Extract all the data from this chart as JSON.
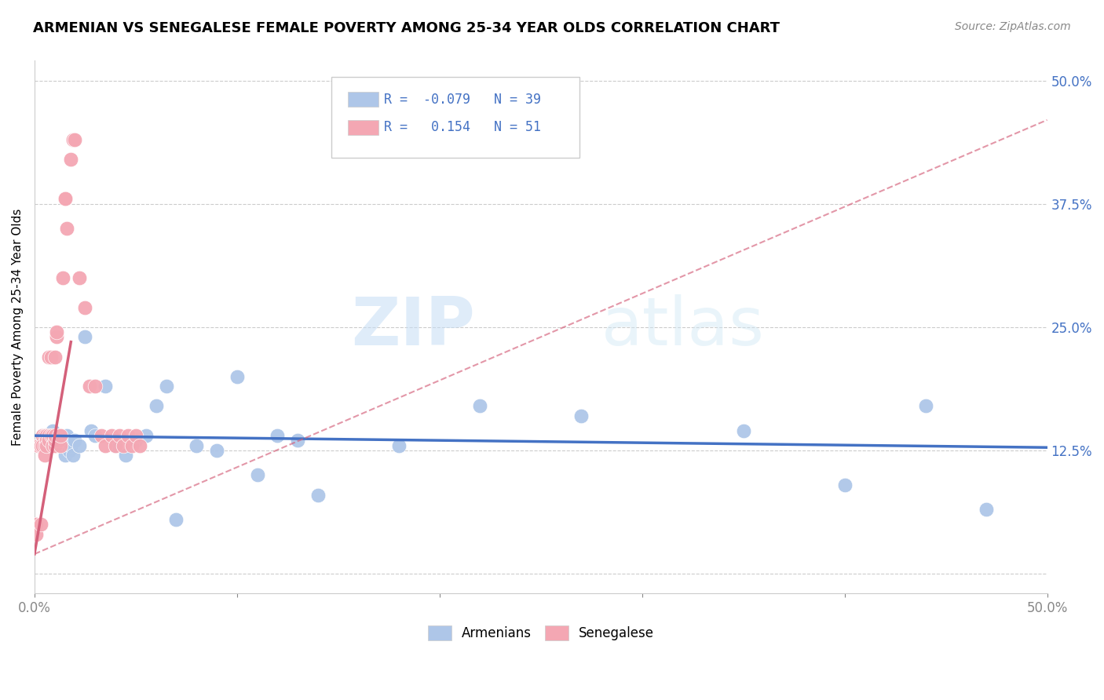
{
  "title": "ARMENIAN VS SENEGALESE FEMALE POVERTY AMONG 25-34 YEAR OLDS CORRELATION CHART",
  "source": "Source: ZipAtlas.com",
  "ylabel": "Female Poverty Among 25-34 Year Olds",
  "xlim": [
    0.0,
    0.5
  ],
  "ylim": [
    -0.02,
    0.52
  ],
  "xticks": [
    0.0,
    0.1,
    0.2,
    0.3,
    0.4,
    0.5
  ],
  "xticklabels": [
    "0.0%",
    "",
    "",
    "",
    "",
    "50.0%"
  ],
  "ytick_positions": [
    0.0,
    0.125,
    0.25,
    0.375,
    0.5
  ],
  "ytick_labels": [
    "",
    "12.5%",
    "25.0%",
    "37.5%",
    "50.0%"
  ],
  "armenians_R": -0.079,
  "armenians_N": 39,
  "senegalese_R": 0.154,
  "senegalese_N": 51,
  "armenian_color": "#aec6e8",
  "senegalese_color": "#f4a7b3",
  "armenian_line_color": "#4472c4",
  "senegalese_line_color": "#d4607a",
  "armenians_x": [
    0.004,
    0.007,
    0.009,
    0.011,
    0.012,
    0.013,
    0.013,
    0.015,
    0.016,
    0.017,
    0.018,
    0.019,
    0.02,
    0.022,
    0.025,
    0.028,
    0.03,
    0.035,
    0.04,
    0.045,
    0.05,
    0.055,
    0.06,
    0.065,
    0.07,
    0.08,
    0.09,
    0.1,
    0.11,
    0.12,
    0.13,
    0.14,
    0.18,
    0.22,
    0.27,
    0.35,
    0.4,
    0.44,
    0.47
  ],
  "armenians_y": [
    0.14,
    0.13,
    0.145,
    0.135,
    0.14,
    0.13,
    0.135,
    0.12,
    0.14,
    0.125,
    0.13,
    0.12,
    0.135,
    0.13,
    0.24,
    0.145,
    0.14,
    0.19,
    0.13,
    0.12,
    0.135,
    0.14,
    0.17,
    0.19,
    0.055,
    0.13,
    0.125,
    0.2,
    0.1,
    0.14,
    0.135,
    0.08,
    0.13,
    0.17,
    0.16,
    0.145,
    0.09,
    0.17,
    0.065
  ],
  "senegalese_x": [
    0.001,
    0.001,
    0.002,
    0.003,
    0.003,
    0.004,
    0.004,
    0.005,
    0.005,
    0.005,
    0.006,
    0.006,
    0.006,
    0.007,
    0.007,
    0.007,
    0.008,
    0.008,
    0.009,
    0.009,
    0.01,
    0.01,
    0.01,
    0.01,
    0.011,
    0.011,
    0.012,
    0.012,
    0.013,
    0.013,
    0.014,
    0.015,
    0.015,
    0.016,
    0.018,
    0.019,
    0.02,
    0.022,
    0.025,
    0.027,
    0.03,
    0.033,
    0.035,
    0.038,
    0.04,
    0.042,
    0.044,
    0.046,
    0.048,
    0.05,
    0.052
  ],
  "senegalese_y": [
    0.05,
    0.04,
    0.13,
    0.13,
    0.05,
    0.14,
    0.13,
    0.14,
    0.13,
    0.12,
    0.14,
    0.135,
    0.13,
    0.14,
    0.135,
    0.22,
    0.14,
    0.22,
    0.14,
    0.13,
    0.13,
    0.135,
    0.14,
    0.22,
    0.24,
    0.245,
    0.14,
    0.135,
    0.13,
    0.14,
    0.3,
    0.38,
    0.38,
    0.35,
    0.42,
    0.44,
    0.44,
    0.3,
    0.27,
    0.19,
    0.19,
    0.14,
    0.13,
    0.14,
    0.13,
    0.14,
    0.13,
    0.14,
    0.13,
    0.14,
    0.13
  ],
  "watermark_zip": "ZIP",
  "watermark_atlas": "atlas",
  "background_color": "#ffffff",
  "grid_color": "#cccccc"
}
